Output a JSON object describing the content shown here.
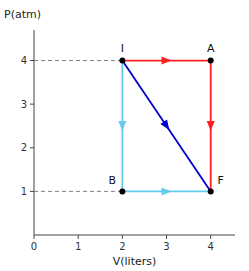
{
  "chart_data": {
    "type": "line",
    "xlabel": "V(liters)",
    "ylabel": "P(atm)",
    "xlim": [
      0,
      4.55
    ],
    "ylim": [
      0,
      4.7
    ],
    "xticks": [
      0,
      1,
      2,
      3,
      4
    ],
    "yticks": [
      1,
      2,
      3,
      4
    ],
    "series": [
      {
        "type": "line",
        "line_style": "dashed",
        "color": "gray",
        "x": [
          0,
          2
        ],
        "values": [
          4,
          4
        ]
      },
      {
        "type": "line",
        "line_style": "dashed",
        "color": "gray",
        "x": [
          0,
          4
        ],
        "values": [
          1,
          1
        ]
      },
      {
        "type": "line",
        "line_style": "solid",
        "marker": "arrow",
        "color": "#ff2020",
        "x": [
          2,
          4
        ],
        "values": [
          4,
          4
        ]
      },
      {
        "type": "line",
        "line_style": "solid",
        "marker": "arrow",
        "color": "#ff2020",
        "x": [
          4,
          4
        ],
        "values": [
          4,
          1
        ]
      },
      {
        "type": "line",
        "line_style": "solid",
        "marker": "arrow",
        "color": "#0000cc",
        "x": [
          2,
          4
        ],
        "values": [
          4,
          1
        ]
      },
      {
        "type": "line",
        "line_style": "solid",
        "marker": "arrow",
        "color": "#66ccee",
        "x": [
          2,
          2
        ],
        "values": [
          4,
          1
        ]
      },
      {
        "type": "line",
        "line_style": "solid",
        "marker": "arrow",
        "color": "#66ccee",
        "x": [
          2,
          4
        ],
        "values": [
          1,
          1
        ]
      },
      {
        "type": "scatter",
        "marker": "circle",
        "color": "black",
        "x": [
          2,
          4,
          2,
          4
        ],
        "values": [
          4,
          4,
          1,
          1
        ],
        "labels": [
          "I",
          "A",
          "B",
          "F"
        ]
      }
    ]
  }
}
